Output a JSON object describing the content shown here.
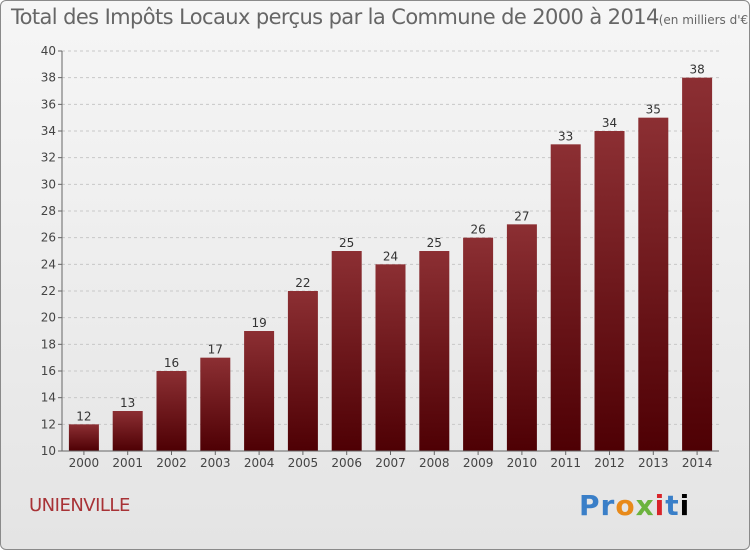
{
  "chart_data": {
    "type": "bar",
    "title": "Total des Impôts Locaux perçus par la Commune de 2000 à 2014",
    "unit_note": "(en milliers d'€)",
    "categories": [
      "2000",
      "2001",
      "2002",
      "2003",
      "2004",
      "2005",
      "2006",
      "2007",
      "2008",
      "2009",
      "2010",
      "2011",
      "2012",
      "2013",
      "2014"
    ],
    "values": [
      12,
      13,
      16,
      17,
      19,
      22,
      25,
      24,
      25,
      26,
      27,
      33,
      34,
      35,
      38
    ],
    "ylim": [
      10,
      40
    ],
    "yticks": [
      10,
      12,
      14,
      16,
      18,
      20,
      22,
      24,
      26,
      28,
      30,
      32,
      34,
      36,
      38,
      40
    ],
    "xlabel": "",
    "ylabel": "",
    "grid": true,
    "bar_color": "#7a1a1e"
  },
  "footer": {
    "commune": "UNIENVILLE",
    "brand_letters": [
      "P",
      "r",
      "o",
      "x",
      "i",
      "t",
      "i"
    ]
  }
}
